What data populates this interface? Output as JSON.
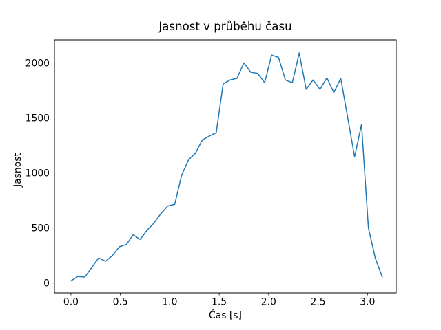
{
  "chart_data": {
    "type": "line",
    "title": "Jasnost v průběhu času",
    "xlabel": "Čas [s]",
    "ylabel": "Jasnost",
    "x": [
      0.0,
      0.07,
      0.14,
      0.21,
      0.28,
      0.35,
      0.42,
      0.49,
      0.56,
      0.63,
      0.7,
      0.77,
      0.84,
      0.91,
      0.98,
      1.05,
      1.12,
      1.19,
      1.26,
      1.33,
      1.4,
      1.47,
      1.54,
      1.61,
      1.68,
      1.75,
      1.82,
      1.89,
      1.96,
      2.03,
      2.1,
      2.17,
      2.24,
      2.31,
      2.38,
      2.45,
      2.52,
      2.59,
      2.66,
      2.73,
      2.8,
      2.87,
      2.94,
      3.01,
      3.08,
      3.15
    ],
    "y": [
      20,
      60,
      55,
      140,
      228,
      198,
      250,
      330,
      350,
      438,
      396,
      480,
      545,
      630,
      700,
      715,
      980,
      1120,
      1180,
      1300,
      1335,
      1365,
      1810,
      1845,
      1860,
      2000,
      1915,
      1905,
      1820,
      2070,
      2050,
      1845,
      1820,
      2090,
      1760,
      1845,
      1760,
      1865,
      1730,
      1860,
      1505,
      1145,
      1440,
      500,
      225,
      55
    ],
    "xlim": [
      -0.167,
      3.291
    ],
    "ylim": [
      -89,
      2209
    ],
    "xticks": [
      0.0,
      0.5,
      1.0,
      1.5,
      2.0,
      2.5,
      3.0
    ],
    "xtick_labels": [
      "0.0",
      "0.5",
      "1.0",
      "1.5",
      "2.0",
      "2.5",
      "3.0"
    ],
    "yticks": [
      0,
      500,
      1000,
      1500,
      2000
    ],
    "ytick_labels": [
      "0",
      "500",
      "1000",
      "1500",
      "2000"
    ],
    "line_color": "#1f77b4",
    "axis_color": "#000000",
    "background": "#ffffff",
    "grid": false,
    "legend": null
  }
}
